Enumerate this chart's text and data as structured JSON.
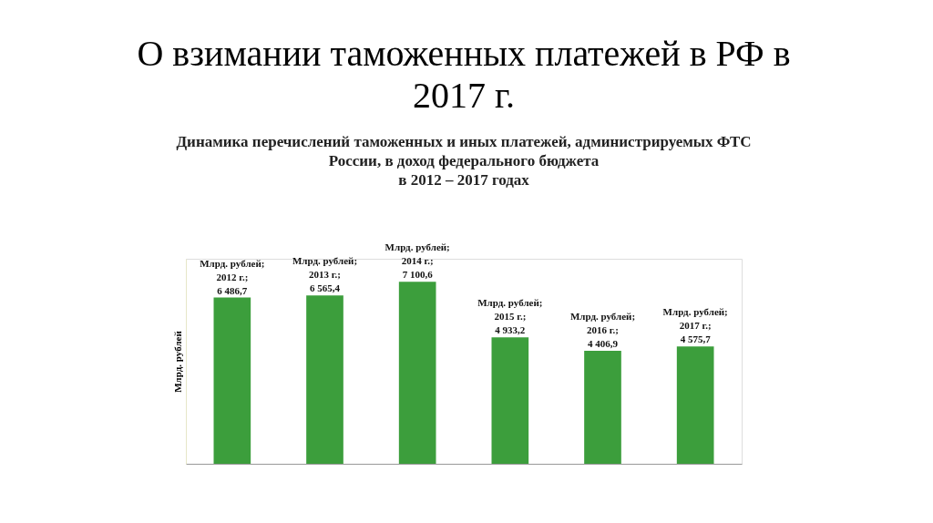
{
  "chart_data": {
    "type": "bar",
    "title": "О взимании таможенных платежей в РФ в\n2017 г.",
    "subtitle": "Динамика перечислений таможенных и иных платежей, администрируемых ФТС\nРоссии, в доход федерального бюджета\nв 2012 – 2017 годах",
    "ylabel": "Млрд. рублей",
    "categories": [
      null,
      null,
      null,
      null,
      null,
      null
    ],
    "values": [
      6486.7,
      6565.4,
      7100.6,
      4933.2,
      4406.9,
      4575.7
    ],
    "color": "#3c9e3c",
    "value_labels": [
      "Млрд. рублей; 2012 г.; 6 486,7",
      "Млрд. рублей; 2013 г.; 6 565,4",
      "Млрд. рублей; 2014 г.; 7 100,6",
      "Млрд. рублей; 2015 г.; 4 933,2",
      "Млрд. рублей; 2016 г.; 4 406,9",
      "Млрд. рублей; 2017 г.; 4 575,7"
    ],
    "grid": false,
    "legend": false
  }
}
